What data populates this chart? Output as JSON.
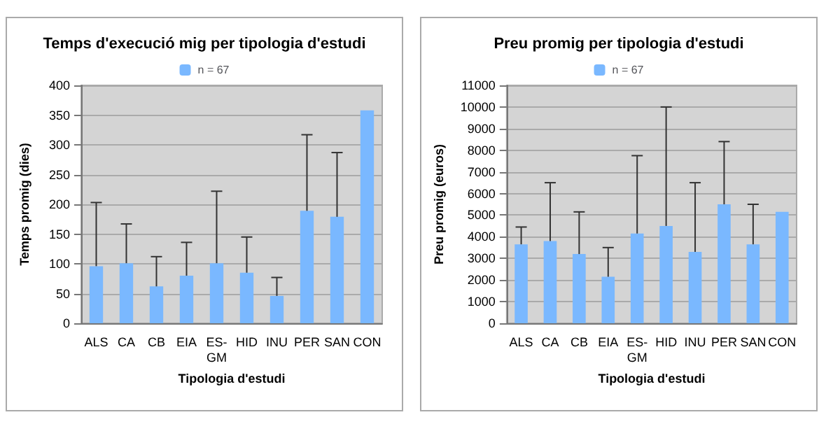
{
  "chart_data": [
    {
      "type": "bar",
      "title": "Temps d'execució mig per tipologia d'estudi",
      "xlabel": "Tipologia d'estudi",
      "ylabel": "Temps promig (dies)",
      "categories": [
        "ALS",
        "CA",
        "CB",
        "EIA",
        "ES-\nGM",
        "HID",
        "INU",
        "PER",
        "SAN",
        "CON"
      ],
      "series": [
        {
          "name": "n = 67",
          "color": "#7ab8ff",
          "values": [
            96,
            101,
            62,
            80,
            101,
            85,
            46,
            189,
            179,
            358
          ],
          "errors": [
            [
              96,
              203
            ],
            [
              101,
              167
            ],
            [
              62,
              112
            ],
            [
              80,
              136
            ],
            [
              101,
              222
            ],
            [
              85,
              145
            ],
            [
              46,
              77
            ],
            [
              189,
              317
            ],
            [
              179,
              287
            ],
            null
          ]
        }
      ],
      "ylim": [
        0,
        400
      ],
      "yticks": [
        0,
        50,
        100,
        150,
        200,
        250,
        300,
        350,
        400
      ],
      "grid": "y",
      "legend": "top"
    },
    {
      "type": "bar",
      "title": "Preu promig per tipologia d'estudi",
      "xlabel": "Tipologia d'estudi",
      "ylabel": "Preu promig (euros)",
      "categories": [
        "ALS",
        "CA",
        "CB",
        "EIA",
        "ES-\nGM",
        "HID",
        "INU",
        "PER",
        "SAN",
        "CON"
      ],
      "series": [
        {
          "name": "n = 67",
          "color": "#7ab8ff",
          "values": [
            3650,
            3800,
            3200,
            2150,
            4150,
            4500,
            3300,
            5500,
            3650,
            5150
          ],
          "errors": [
            [
              3650,
              4450
            ],
            [
              3800,
              6500
            ],
            [
              3200,
              5150
            ],
            [
              2150,
              3500
            ],
            [
              4150,
              7750
            ],
            [
              4500,
              10000
            ],
            [
              3300,
              6500
            ],
            [
              5500,
              8400
            ],
            [
              3650,
              5500
            ],
            null
          ]
        }
      ],
      "ylim": [
        0,
        11000
      ],
      "yticks": [
        0,
        1000,
        2000,
        3000,
        4000,
        5000,
        6000,
        7000,
        8000,
        9000,
        10000,
        11000
      ],
      "grid": "y",
      "legend": "top"
    }
  ]
}
